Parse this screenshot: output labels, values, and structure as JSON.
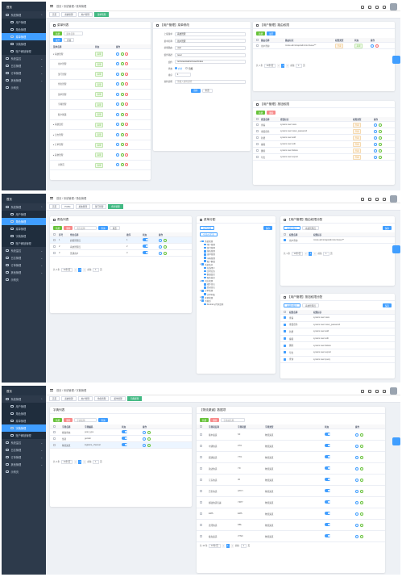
{
  "sidebar": {
    "home": "首页",
    "system": "系统管理",
    "items": [
      "用户管理",
      "角色管理",
      "菜单管理",
      "字典管理",
      "账户解锁管理"
    ],
    "monitor": "系统监控",
    "log": "日志管理",
    "order": "订单管理",
    "other": "其他管理",
    "test": "示例页"
  },
  "shot1": {
    "breadcrumb": "首页 / 系统管理 / 菜单管理",
    "tags": [
      "首页",
      "系统管理",
      "用户管理",
      "菜单管理"
    ],
    "menu_card": {
      "title": "菜单列表",
      "add": "新增",
      "search_ph": "菜单名称",
      "expand": "展开",
      "collapse": "折叠",
      "cols": [
        "菜单名称",
        "状态",
        "操作"
      ],
      "rows": [
        {
          "n": "▾ 系统管理",
          "s": "启用"
        },
        {
          "n": "用户管理",
          "s": "启用"
        },
        {
          "n": "部门管理",
          "s": "启用"
        },
        {
          "n": "角色管理",
          "s": "启用"
        },
        {
          "n": "菜单管理",
          "s": "启用"
        },
        {
          "n": "字典管理",
          "s": "启用"
        },
        {
          "n": "账户解锁",
          "s": "启用"
        },
        {
          "n": "▸ 系统监控",
          "s": "启用"
        },
        {
          "n": "▸ 日志管理",
          "s": "启用"
        },
        {
          "n": "▸ 订单管理",
          "s": "启用"
        },
        {
          "n": "▸ 其他管理",
          "s": "启用"
        },
        {
          "n": "示例页",
          "s": "启用"
        }
      ]
    },
    "form_card": {
      "title": "【用户管理】菜单修改",
      "fields": [
        {
          "l": "上级菜单",
          "v": "系统管理"
        },
        {
          "l": "菜单名称",
          "v": "用户管理"
        },
        {
          "l": "前端路由",
          "v": "user"
        },
        {
          "l": "组件路径",
          "v": "/user"
        },
        {
          "l": "组件",
          "v": "/src/views/admin/user/Index"
        }
      ],
      "status_label": "状态",
      "status_opts": [
        "启用",
        "隐藏"
      ],
      "sort_label": "排序",
      "sort_val": "1",
      "remark_label": "资料说明",
      "remark_ph": "请输入资料说明",
      "save": "保存",
      "reset": "重置"
    },
    "perm_card": {
      "title": "【用户管理】路由权限",
      "add": "新增",
      "expand": "展开",
      "cols": [
        "路由名称",
        "路由标识",
        "权限类型",
        "状态",
        "操作"
      ],
      "rows": [
        {
          "a": "用户查询",
          "b": "/route.admin/api/admin/v1/user/**",
          "c": "只读",
          "d": "启用"
        }
      ],
      "pager": {
        "total": "共 1 条",
        "size": "10条/页",
        "page": "1",
        "goto": "前往",
        "pg": "1",
        "unit": "页"
      }
    },
    "btn_card": {
      "title": "【用户管理】按钮权限",
      "add": "新增",
      "delete": "删除",
      "cols": [
        "按钮名称",
        "按钮标识",
        "权限类型",
        "操作"
      ],
      "rows": [
        {
          "a": "查看",
          "b": "system:user:view",
          "c": "只读"
        },
        {
          "a": "重置密码",
          "b": "system:user:reset_password",
          "c": "只读"
        },
        {
          "a": "新增",
          "b": "system:user:add",
          "c": "只读"
        },
        {
          "a": "编辑",
          "b": "system:user:edit",
          "c": "只读"
        },
        {
          "a": "删除",
          "b": "system:user:delete",
          "c": "只读"
        },
        {
          "a": "导出",
          "b": "system:user:export",
          "c": "只读"
        }
      ]
    }
  },
  "shot2": {
    "breadcrumb": "首页 / 系统管理 / 角色管理",
    "tags": [
      "首页",
      "Profile",
      "系统管理",
      "部门管理",
      "角色管理"
    ],
    "role_card": {
      "title": "角色列表",
      "add": "新增",
      "delete": "删除",
      "search_ph": "角色名称",
      "search": "查询",
      "reset": "重置",
      "cols": [
        "序号",
        "角色名称",
        "排序",
        "状态",
        "操作"
      ],
      "rows": [
        {
          "i": "1",
          "n": "超级管理员",
          "o": "1"
        },
        {
          "i": "2",
          "n": "系统管理员",
          "o": "2"
        },
        {
          "i": "3",
          "n": "普通用户",
          "o": "3"
        }
      ],
      "pager": {
        "total": "共 3 条",
        "size": "10条/页",
        "page": "1",
        "goto": "前往",
        "pg": "1",
        "unit": "页"
      }
    },
    "menu_tree": {
      "title": "菜单分配",
      "expand": "展开折叠",
      "select_all": "全选/全不选",
      "save": "保存",
      "nodes": [
        {
          "t": "系统管理",
          "d": 0
        },
        {
          "t": "用户管理",
          "d": 1
        },
        {
          "t": "部门管理",
          "d": 1
        },
        {
          "t": "角色管理",
          "d": 1
        },
        {
          "t": "菜单管理",
          "d": 1
        },
        {
          "t": "字典管理",
          "d": 1
        },
        {
          "t": "账户解锁",
          "d": 1
        },
        {
          "t": "系统监控",
          "d": 0
        },
        {
          "t": "在线用户",
          "d": 1
        },
        {
          "t": "定时任务",
          "d": 1
        },
        {
          "t": "数据监控",
          "d": 1
        },
        {
          "t": "服务监控",
          "d": 1
        },
        {
          "t": "日志管理",
          "d": 0
        },
        {
          "t": "操作日志",
          "d": 1
        },
        {
          "t": "登录日志",
          "d": 1
        },
        {
          "t": "订单管理",
          "d": 0
        },
        {
          "t": "订单列表",
          "d": 1
        },
        {
          "t": "其他管理",
          "d": 0
        },
        {
          "t": "示例页",
          "d": 0
        },
        {
          "t": "Double与代码案例",
          "d": 1
        }
      ]
    },
    "route_card": {
      "title": "【用户管理】路由权限分配",
      "tabs": [
        "超级管理员",
        "系统管理员"
      ],
      "save": "保存",
      "cols": [
        "权限名称",
        "权限标识"
      ],
      "rows": [
        {
          "a": "用户查询",
          "b": "/route.admin/api/admin/v1/user/**"
        }
      ],
      "pager": {
        "total": "共 1 条",
        "size": "10条/页",
        "page": "1",
        "goto": "前往",
        "pg": "1",
        "unit": "页"
      }
    },
    "btnperm_card": {
      "title": "【用户管理】按钮权限分配",
      "tabs": [
        "超级管理员",
        "系统管理员"
      ],
      "save": "保存",
      "cols": [
        "权限名称",
        "权限标识"
      ],
      "rows": [
        {
          "a": "查看",
          "b": "system:user:view"
        },
        {
          "a": "重置密码",
          "b": "system:user:reset_password"
        },
        {
          "a": "新增",
          "b": "system:user:add"
        },
        {
          "a": "编辑",
          "b": "system:user:edit"
        },
        {
          "a": "删除",
          "b": "system:user:delete"
        },
        {
          "a": "导出",
          "b": "system:user:export"
        },
        {
          "a": "查询",
          "b": "system:user:query"
        }
      ]
    }
  },
  "shot3": {
    "breadcrumb": "首页 / 系统管理 / 字典管理",
    "tags": [
      "首页",
      "系统管理",
      "用户管理",
      "角色管理",
      "菜单管理",
      "字典管理"
    ],
    "dict_card": {
      "title": "字典列表",
      "add": "新增",
      "delete": "删除",
      "search_ph": "字典名称",
      "search": "查询",
      "cols": [
        "字典名称",
        "字典编码",
        "状态",
        "操作"
      ],
      "rows": [
        {
          "n": "邮政状态",
          "c": "post_type"
        },
        {
          "n": "性别",
          "c": "gender"
        },
        {
          "n": "物流渠道",
          "c": "logistics_channel"
        }
      ],
      "pager": {
        "total": "共 3 条",
        "size": "10条/页",
        "page": "1",
        "goto": "前往",
        "pg": "1",
        "unit": "页"
      }
    },
    "item_card": {
      "title": "【物流渠道】数据项",
      "add": "新增",
      "delete": "删除",
      "search_ph": "字典项名称",
      "cols": [
        "字典项名称",
        "字典项值",
        "字典类型",
        "状态",
        "操作"
      ],
      "rows": [
        {
          "n": "顺丰速运",
          "v": "SF",
          "t": "物流渠道"
        },
        {
          "n": "中通快递",
          "v": "ZTO",
          "t": "物流渠道"
        },
        {
          "n": "圆通速递",
          "v": "YTO",
          "t": "物流渠道"
        },
        {
          "n": "韵达快递",
          "v": "YD",
          "t": "物流渠道"
        },
        {
          "n": "京东快递",
          "v": "JD",
          "t": "物流渠道"
        },
        {
          "n": "百世快递",
          "v": "HTKY",
          "t": "物流渠道"
        },
        {
          "n": "邮政快递包裹",
          "v": "YZPY",
          "t": "物流渠道"
        },
        {
          "n": "EMS",
          "v": "EMS",
          "t": "物流渠道"
        },
        {
          "n": "德邦快递",
          "v": "DBL",
          "t": "物流渠道"
        },
        {
          "n": "极兔速递",
          "v": "JTSD",
          "t": "物流渠道"
        }
      ],
      "pager": {
        "total": "共 10 条",
        "size": "10条/页",
        "page": "1",
        "goto": "前往",
        "pg": "1",
        "unit": "页"
      }
    }
  }
}
